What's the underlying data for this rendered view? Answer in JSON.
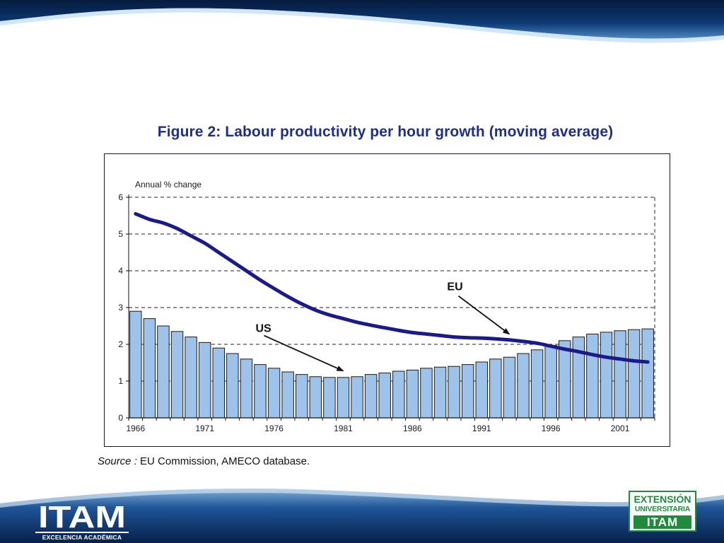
{
  "title": "Figure 2: Labour productivity per hour growth (moving average)",
  "source": {
    "label": "Source :",
    "text": " EU Commission, AMECO database."
  },
  "colors": {
    "bar_fill": "#9dc3ea",
    "bar_stroke": "#1a1a1a",
    "line": "#1a1a8c",
    "title": "#1f2f86",
    "brand_green": "#1e8c3a",
    "wave_dark": "#0b2c5c"
  },
  "logos": {
    "itam_word": "ITAM",
    "itam_sub": "EXCELENCIA ACADÉMICA",
    "ext_line1": "EXTENSIÓN",
    "ext_line2": "UNIVERSITARIA",
    "ext_word": "ITAM"
  },
  "chart_data": {
    "type": "bar+line",
    "title": "Figure 2: Labour productivity per hour growth (moving average)",
    "ylabel": "Annual % change",
    "xlabel": "",
    "ylim": [
      0,
      6
    ],
    "yticks": [
      0,
      1,
      2,
      3,
      4,
      5,
      6
    ],
    "grid": "horizontal dashed",
    "x": [
      1966,
      1967,
      1968,
      1969,
      1970,
      1971,
      1972,
      1973,
      1974,
      1975,
      1976,
      1977,
      1978,
      1979,
      1980,
      1981,
      1982,
      1983,
      1984,
      1985,
      1986,
      1987,
      1988,
      1989,
      1990,
      1991,
      1992,
      1993,
      1994,
      1995,
      1996,
      1997,
      1998,
      1999,
      2000,
      2001,
      2002,
      2003
    ],
    "xticks": [
      "1966",
      "1971",
      "1976",
      "1981",
      "1986",
      "1991",
      "1996",
      "2001"
    ],
    "series": [
      {
        "name": "US",
        "type": "bar",
        "values": [
          2.9,
          2.7,
          2.5,
          2.35,
          2.2,
          2.05,
          1.9,
          1.75,
          1.6,
          1.45,
          1.35,
          1.25,
          1.18,
          1.12,
          1.1,
          1.1,
          1.12,
          1.18,
          1.22,
          1.27,
          1.3,
          1.35,
          1.38,
          1.4,
          1.45,
          1.52,
          1.6,
          1.65,
          1.75,
          1.85,
          1.97,
          2.1,
          2.2,
          2.28,
          2.33,
          2.37,
          2.4,
          2.42
        ]
      },
      {
        "name": "EU",
        "type": "line",
        "values": [
          5.55,
          5.4,
          5.3,
          5.15,
          4.95,
          4.75,
          4.5,
          4.25,
          4.0,
          3.75,
          3.52,
          3.3,
          3.1,
          2.93,
          2.8,
          2.7,
          2.6,
          2.52,
          2.45,
          2.38,
          2.32,
          2.28,
          2.24,
          2.2,
          2.18,
          2.17,
          2.15,
          2.12,
          2.08,
          2.03,
          1.95,
          1.87,
          1.8,
          1.72,
          1.65,
          1.6,
          1.55,
          1.52
        ]
      }
    ],
    "annotations": [
      {
        "text": "US",
        "points_to_year": 1981,
        "points_to_value": 1.2,
        "series": "US"
      },
      {
        "text": "EU",
        "points_to_year": 1993,
        "points_to_value": 2.2,
        "series": "EU"
      }
    ]
  }
}
